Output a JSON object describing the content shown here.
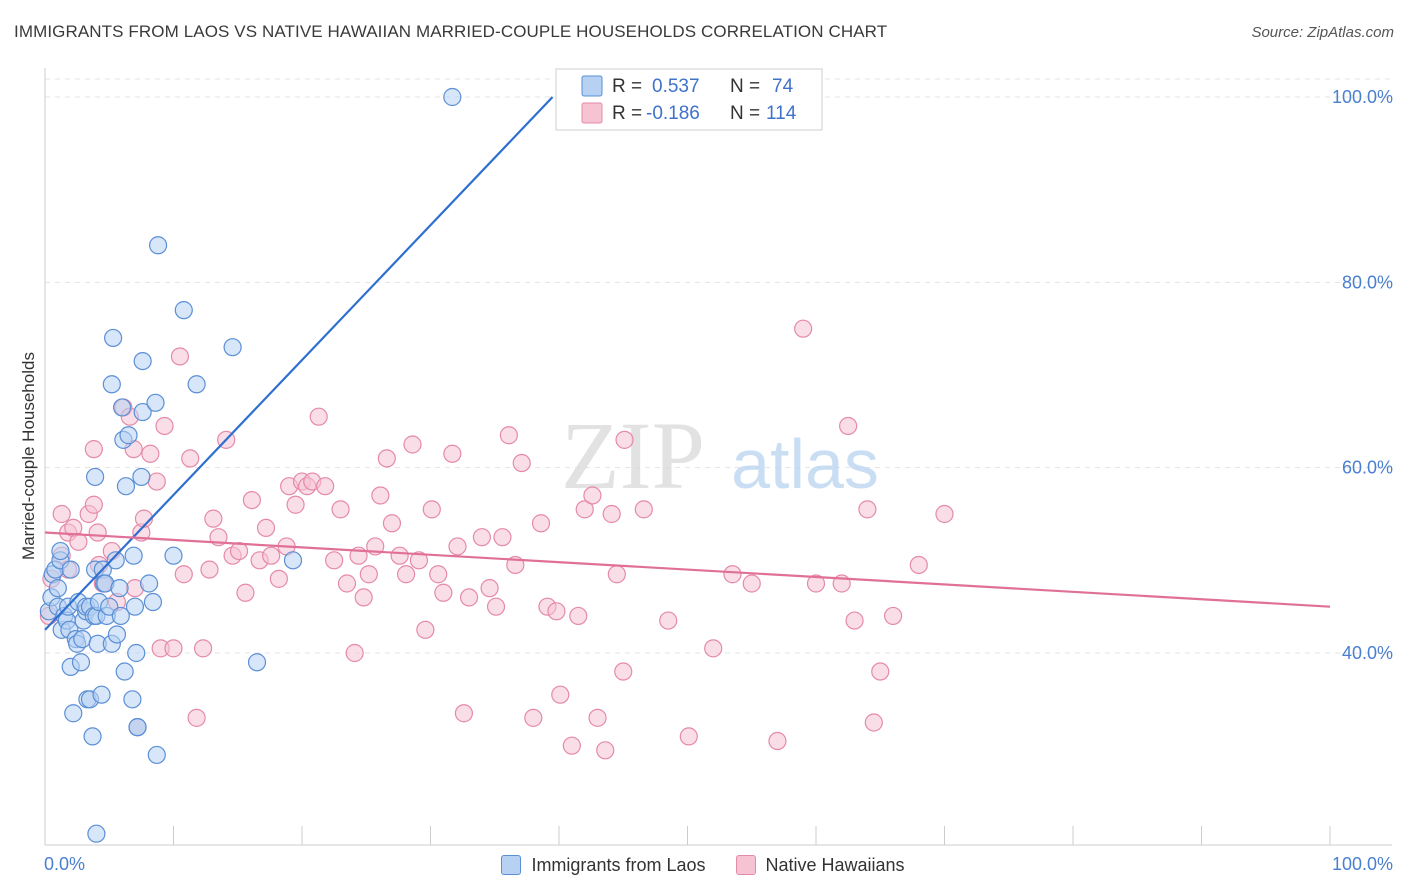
{
  "title": "IMMIGRANTS FROM LAOS VS NATIVE HAWAIIAN MARRIED-COUPLE HOUSEHOLDS CORRELATION CHART",
  "source": "Source: ZipAtlas.com",
  "watermark": {
    "zip": "ZIP",
    "atlas": "atlas"
  },
  "colors": {
    "blue_fill": "#b7d1f3",
    "blue_stroke": "#5b8fd6",
    "blue_line": "#2f6fd0",
    "pink_fill": "#f6c3d3",
    "pink_stroke": "#e58aa8",
    "pink_line": "#e07098",
    "axis_text": "#4a7fd0",
    "grid": "#e3e3e3"
  },
  "legend": {
    "rows": [
      {
        "r_label": "R =",
        "r_value": "0.537",
        "n_label": "N =",
        "n_value": "74"
      },
      {
        "r_label": "R =",
        "r_value": "-0.186",
        "n_label": "N =",
        "n_value": "114"
      }
    ]
  },
  "bottom_legend": {
    "series1": "Immigrants from Laos",
    "series2": "Native Hawaiians"
  },
  "chart_data": {
    "type": "scatter",
    "title": "IMMIGRANTS FROM LAOS VS NATIVE HAWAIIAN MARRIED-COUPLE HOUSEHOLDS CORRELATION CHART",
    "xlabel": "",
    "ylabel": "Married-couple Households",
    "xlim": [
      0,
      100
    ],
    "ylim": [
      20,
      102
    ],
    "x_tick_labels": [
      "0.0%",
      "100.0%"
    ],
    "y_ticks": [
      40,
      60,
      80,
      100
    ],
    "y_tick_labels": [
      "40.0%",
      "60.0%",
      "80.0%",
      "100.0%"
    ],
    "series": [
      {
        "name": "Immigrants from Laos",
        "R": 0.537,
        "N": 74,
        "trend": {
          "x": [
            0,
            39.5
          ],
          "y": [
            42.5,
            100
          ]
        },
        "points": [
          [
            0.3,
            44.5
          ],
          [
            0.5,
            46.0
          ],
          [
            0.6,
            48.5
          ],
          [
            0.8,
            49.0
          ],
          [
            1.0,
            47.0
          ],
          [
            1.0,
            45.0
          ],
          [
            1.2,
            50.0
          ],
          [
            1.2,
            51.0
          ],
          [
            1.3,
            42.5
          ],
          [
            1.5,
            44.0
          ],
          [
            1.7,
            43.5
          ],
          [
            1.8,
            45.0
          ],
          [
            1.9,
            42.5
          ],
          [
            2.0,
            38.5
          ],
          [
            2.0,
            49.0
          ],
          [
            2.2,
            33.5
          ],
          [
            2.4,
            41.5
          ],
          [
            2.5,
            41.0
          ],
          [
            2.6,
            45.5
          ],
          [
            2.8,
            39.0
          ],
          [
            2.9,
            41.5
          ],
          [
            3.0,
            43.5
          ],
          [
            3.2,
            44.5
          ],
          [
            3.2,
            45.0
          ],
          [
            3.3,
            35.0
          ],
          [
            3.5,
            35.0
          ],
          [
            3.5,
            45.0
          ],
          [
            3.7,
            31.0
          ],
          [
            3.8,
            44.0
          ],
          [
            3.9,
            49.0
          ],
          [
            3.9,
            59.0
          ],
          [
            4.0,
            44.0
          ],
          [
            4.1,
            41.0
          ],
          [
            4.2,
            45.5
          ],
          [
            4.4,
            35.5
          ],
          [
            4.5,
            49.0
          ],
          [
            4.6,
            47.5
          ],
          [
            4.7,
            47.5
          ],
          [
            4.8,
            44.0
          ],
          [
            5.0,
            45.0
          ],
          [
            5.2,
            69.0
          ],
          [
            5.2,
            41.0
          ],
          [
            5.3,
            74.0
          ],
          [
            5.5,
            50.0
          ],
          [
            5.6,
            42.0
          ],
          [
            5.8,
            47.0
          ],
          [
            5.9,
            44.0
          ],
          [
            6.0,
            66.5
          ],
          [
            6.1,
            63.0
          ],
          [
            6.2,
            38.0
          ],
          [
            6.3,
            58.0
          ],
          [
            6.5,
            63.5
          ],
          [
            6.8,
            35.0
          ],
          [
            6.9,
            50.5
          ],
          [
            7.0,
            45.0
          ],
          [
            7.1,
            40.0
          ],
          [
            7.2,
            32.0
          ],
          [
            7.2,
            32.0
          ],
          [
            7.5,
            59.0
          ],
          [
            7.6,
            66.0
          ],
          [
            7.6,
            71.5
          ],
          [
            8.1,
            47.5
          ],
          [
            8.4,
            45.5
          ],
          [
            8.6,
            67.0
          ],
          [
            8.8,
            84.0
          ],
          [
            8.7,
            29.0
          ],
          [
            10.0,
            50.5
          ],
          [
            10.8,
            77.0
          ],
          [
            11.8,
            69.0
          ],
          [
            14.6,
            73.0
          ],
          [
            16.5,
            39.0
          ],
          [
            19.3,
            50.0
          ],
          [
            4.0,
            20.5
          ],
          [
            31.7,
            100.0
          ]
        ]
      },
      {
        "name": "Native Hawaiians",
        "R": -0.186,
        "N": 114,
        "trend": {
          "x": [
            0,
            100
          ],
          "y": [
            53.0,
            45.0
          ]
        },
        "points": [
          [
            0.3,
            44.0
          ],
          [
            0.5,
            48.0
          ],
          [
            1.3,
            50.5
          ],
          [
            1.3,
            55.0
          ],
          [
            1.8,
            49.0
          ],
          [
            1.8,
            53.0
          ],
          [
            2.2,
            53.5
          ],
          [
            2.6,
            52.0
          ],
          [
            3.4,
            55.0
          ],
          [
            3.8,
            56.0
          ],
          [
            3.8,
            62.0
          ],
          [
            4.1,
            53.0
          ],
          [
            4.2,
            49.5
          ],
          [
            4.5,
            47.5
          ],
          [
            5.2,
            51.0
          ],
          [
            5.6,
            45.5
          ],
          [
            6.1,
            66.5
          ],
          [
            6.6,
            65.5
          ],
          [
            6.9,
            62.0
          ],
          [
            7.0,
            47.0
          ],
          [
            7.2,
            32.0
          ],
          [
            7.5,
            53.0
          ],
          [
            7.7,
            54.5
          ],
          [
            8.2,
            61.5
          ],
          [
            8.7,
            58.5
          ],
          [
            9.0,
            40.5
          ],
          [
            9.3,
            64.5
          ],
          [
            10.0,
            40.5
          ],
          [
            10.5,
            72.0
          ],
          [
            10.8,
            48.5
          ],
          [
            11.3,
            61.0
          ],
          [
            11.8,
            33.0
          ],
          [
            12.3,
            40.5
          ],
          [
            12.8,
            49.0
          ],
          [
            13.1,
            54.5
          ],
          [
            13.5,
            52.5
          ],
          [
            14.1,
            63.0
          ],
          [
            14.6,
            50.5
          ],
          [
            15.1,
            51.0
          ],
          [
            15.6,
            46.5
          ],
          [
            16.1,
            56.5
          ],
          [
            16.7,
            50.0
          ],
          [
            17.2,
            53.5
          ],
          [
            17.6,
            50.5
          ],
          [
            18.2,
            48.0
          ],
          [
            18.8,
            51.5
          ],
          [
            19.0,
            58.0
          ],
          [
            19.5,
            56.0
          ],
          [
            20.0,
            58.5
          ],
          [
            20.4,
            58.0
          ],
          [
            20.8,
            58.5
          ],
          [
            21.3,
            65.5
          ],
          [
            21.8,
            58.0
          ],
          [
            22.5,
            50.0
          ],
          [
            23.0,
            55.5
          ],
          [
            23.5,
            47.5
          ],
          [
            24.1,
            40.0
          ],
          [
            24.4,
            50.5
          ],
          [
            24.8,
            46.0
          ],
          [
            25.2,
            48.5
          ],
          [
            25.7,
            51.5
          ],
          [
            26.1,
            57.0
          ],
          [
            26.6,
            61.0
          ],
          [
            27.0,
            54.0
          ],
          [
            27.6,
            50.5
          ],
          [
            28.1,
            48.5
          ],
          [
            28.6,
            62.5
          ],
          [
            29.1,
            50.0
          ],
          [
            29.6,
            42.5
          ],
          [
            30.1,
            55.5
          ],
          [
            30.6,
            48.5
          ],
          [
            31.0,
            46.5
          ],
          [
            31.7,
            61.5
          ],
          [
            32.1,
            51.5
          ],
          [
            32.6,
            33.5
          ],
          [
            33.0,
            46.0
          ],
          [
            34.0,
            52.5
          ],
          [
            34.6,
            47.0
          ],
          [
            35.1,
            45.0
          ],
          [
            35.6,
            52.5
          ],
          [
            36.1,
            63.5
          ],
          [
            36.6,
            49.5
          ],
          [
            37.1,
            60.5
          ],
          [
            38.0,
            33.0
          ],
          [
            38.6,
            54.0
          ],
          [
            39.1,
            45.0
          ],
          [
            39.8,
            44.5
          ],
          [
            40.1,
            35.5
          ],
          [
            41.0,
            30.0
          ],
          [
            41.5,
            44.0
          ],
          [
            42.0,
            55.5
          ],
          [
            42.6,
            57.0
          ],
          [
            43.0,
            33.0
          ],
          [
            43.6,
            29.5
          ],
          [
            44.1,
            55.0
          ],
          [
            44.5,
            48.5
          ],
          [
            45.0,
            38.0
          ],
          [
            45.1,
            63.0
          ],
          [
            46.6,
            55.5
          ],
          [
            48.5,
            43.5
          ],
          [
            50.1,
            31.0
          ],
          [
            52.0,
            40.5
          ],
          [
            53.5,
            48.5
          ],
          [
            55.0,
            47.5
          ],
          [
            57.0,
            30.5
          ],
          [
            59.0,
            75.0
          ],
          [
            60.0,
            47.5
          ],
          [
            62.0,
            47.5
          ],
          [
            62.5,
            64.5
          ],
          [
            63.0,
            43.5
          ],
          [
            64.0,
            55.5
          ],
          [
            64.5,
            32.5
          ],
          [
            65.0,
            38.0
          ],
          [
            66.0,
            44.0
          ],
          [
            68.0,
            49.5
          ],
          [
            70.0,
            55.0
          ]
        ]
      }
    ]
  }
}
